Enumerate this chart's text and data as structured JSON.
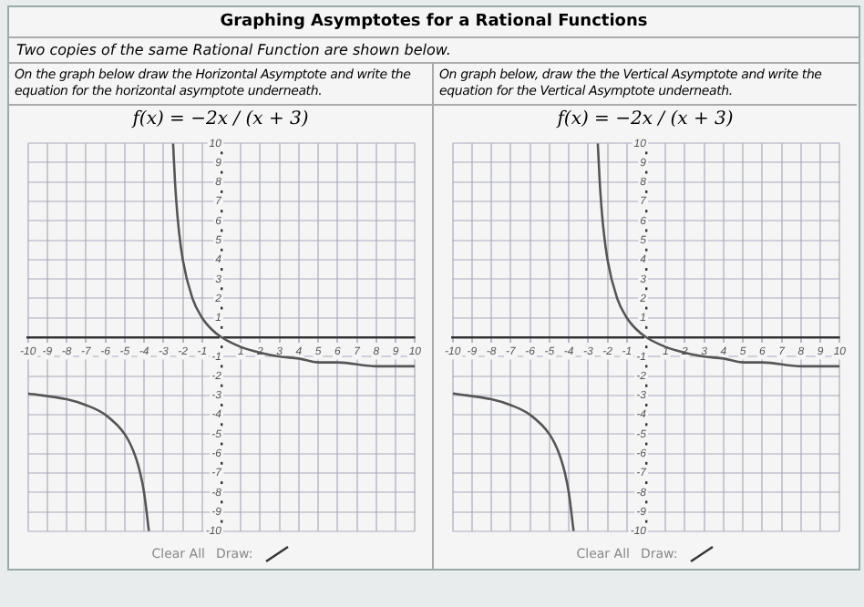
{
  "chart_data": [
    {
      "type": "line",
      "title": "Graphing Asymptotes for a Rational Functions",
      "subtitle": "Two copies of the same Rational Function are shown below.",
      "annotations": [
        "On the graph below draw the Horizontal Asymptote and write the equation for the horizontal asymptote underneath.",
        "f(x) = −2x / (x + 3)",
        "Clear All",
        "Draw:"
      ],
      "series": [
        {
          "color": "#555555",
          "x": [
            -10,
            -8,
            -7,
            -6,
            -5,
            -4.5,
            -4.2,
            -4,
            -3.75
          ],
          "values": [
            -2.9,
            -3.2,
            -3.5,
            -4,
            -5,
            -6,
            -7,
            -8,
            -10
          ]
        },
        {
          "color": "#555555",
          "x": [
            -2.5,
            -2.4,
            -2.25,
            -2,
            -1.5,
            -1,
            -0.5,
            0,
            1,
            2,
            3,
            4,
            5,
            6,
            8,
            10
          ],
          "values": [
            10,
            8,
            6,
            4,
            2,
            1,
            0.4,
            0,
            -0.5,
            -0.8,
            -1,
            -1.1,
            -1.3,
            -1.3,
            -1.5,
            -1.5
          ]
        }
      ],
      "xlim": [
        -10,
        10
      ],
      "ylim": [
        -10,
        10
      ],
      "xticks": [
        -10,
        -9,
        -8,
        -7,
        -6,
        -5,
        -4,
        -3,
        -2,
        -1,
        {
          "value": 0,
          "label": null
        },
        1,
        2,
        3,
        4,
        5,
        6,
        7,
        8,
        9,
        10
      ],
      "yticks": [
        -10,
        -9,
        -8,
        -7,
        -6,
        -5,
        -4,
        -3,
        -2,
        -1,
        {
          "value": 0,
          "label": null
        },
        1,
        2,
        3,
        4,
        5,
        6,
        7,
        8,
        9,
        10
      ],
      "grid": true,
      "legend": false
    },
    {
      "type": "line",
      "annotations": [
        "On graph below, draw the the Vertical Asymptote and write the equation for the Vertical Asymptote underneath.",
        "f(x) = −2x / (x + 3)",
        "Clear All",
        "Draw:"
      ],
      "series": [
        {
          "color": "#555555",
          "x": [
            -10,
            -8,
            -7,
            -6,
            -5,
            -4.5,
            -4.2,
            -4,
            -3.75
          ],
          "values": [
            -2.9,
            -3.2,
            -3.5,
            -4,
            -5,
            -6,
            -7,
            -8,
            -10
          ]
        },
        {
          "color": "#555555",
          "x": [
            -2.5,
            -2.4,
            -2.25,
            -2,
            -1.5,
            -1,
            -0.5,
            0,
            1,
            2,
            3,
            4,
            5,
            6,
            8,
            10
          ],
          "values": [
            10,
            8,
            6,
            4,
            2,
            1,
            0.4,
            0,
            -0.5,
            -0.8,
            -1,
            -1.1,
            -1.3,
            -1.3,
            -1.5,
            -1.5
          ]
        }
      ],
      "xlim": [
        -10,
        10
      ],
      "ylim": [
        -10,
        10
      ],
      "xticks": [
        -10,
        -9,
        -8,
        -7,
        -6,
        -5,
        -4,
        -3,
        -2,
        -1,
        {
          "value": 0,
          "label": null
        },
        1,
        2,
        3,
        4,
        5,
        6,
        7,
        8,
        9,
        10
      ],
      "yticks": [
        -10,
        -9,
        -8,
        -7,
        -6,
        -5,
        -4,
        -3,
        -2,
        -1,
        {
          "value": 0,
          "label": null
        },
        1,
        2,
        3,
        4,
        5,
        6,
        7,
        8,
        9,
        10
      ],
      "grid": true,
      "legend": false
    }
  ]
}
